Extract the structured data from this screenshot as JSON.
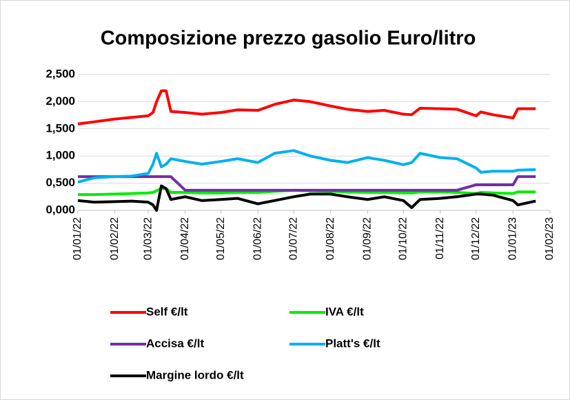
{
  "chart_data": {
    "type": "line",
    "title": "Composizione prezzo gasolio Euro/litro",
    "x": [
      "2022-01-01",
      "2022-01-15",
      "2022-02-01",
      "2022-02-15",
      "2022-03-01",
      "2022-03-05",
      "2022-03-08",
      "2022-03-12",
      "2022-03-16",
      "2022-03-20",
      "2022-04-01",
      "2022-04-15",
      "2022-05-01",
      "2022-05-15",
      "2022-06-01",
      "2022-06-15",
      "2022-07-01",
      "2022-07-15",
      "2022-08-01",
      "2022-08-15",
      "2022-09-01",
      "2022-09-15",
      "2022-10-01",
      "2022-10-08",
      "2022-10-15",
      "2022-11-01",
      "2022-11-15",
      "2022-12-01",
      "2022-12-05",
      "2022-12-15",
      "2023-01-01",
      "2023-01-05",
      "2023-01-20"
    ],
    "series": [
      {
        "name": "Self €/lt",
        "color": "#ff0000",
        "values": [
          1.59,
          1.63,
          1.68,
          1.71,
          1.74,
          1.8,
          2.0,
          2.2,
          2.2,
          1.82,
          1.8,
          1.77,
          1.8,
          1.85,
          1.84,
          1.95,
          2.03,
          2.0,
          1.92,
          1.86,
          1.82,
          1.84,
          1.77,
          1.76,
          1.88,
          1.87,
          1.86,
          1.74,
          1.81,
          1.76,
          1.7,
          1.87,
          1.87
        ]
      },
      {
        "name": "IVA €/lt",
        "color": "#00ee00",
        "values": [
          0.29,
          0.29,
          0.3,
          0.31,
          0.32,
          0.33,
          0.36,
          0.4,
          0.4,
          0.33,
          0.33,
          0.32,
          0.32,
          0.33,
          0.33,
          0.35,
          0.37,
          0.36,
          0.35,
          0.34,
          0.33,
          0.33,
          0.32,
          0.32,
          0.34,
          0.34,
          0.33,
          0.31,
          0.33,
          0.32,
          0.31,
          0.34,
          0.34
        ]
      },
      {
        "name": "Accisa €/lt",
        "color": "#7030a0",
        "values": [
          0.62,
          0.62,
          0.62,
          0.62,
          0.62,
          0.62,
          0.62,
          0.62,
          0.62,
          0.62,
          0.37,
          0.37,
          0.37,
          0.37,
          0.37,
          0.37,
          0.37,
          0.37,
          0.37,
          0.37,
          0.37,
          0.37,
          0.37,
          0.37,
          0.37,
          0.37,
          0.37,
          0.47,
          0.47,
          0.47,
          0.47,
          0.62,
          0.62
        ]
      },
      {
        "name": "Platt's €/lt",
        "color": "#00b0f0",
        "values": [
          0.52,
          0.6,
          0.62,
          0.63,
          0.68,
          0.85,
          1.05,
          0.8,
          0.85,
          0.95,
          0.9,
          0.85,
          0.9,
          0.95,
          0.88,
          1.05,
          1.1,
          1.0,
          0.92,
          0.88,
          0.97,
          0.92,
          0.84,
          0.88,
          1.05,
          0.97,
          0.95,
          0.78,
          0.7,
          0.72,
          0.72,
          0.74,
          0.75
        ]
      },
      {
        "name": "Margine lordo €/lt",
        "color": "#000000",
        "values": [
          0.18,
          0.15,
          0.16,
          0.17,
          0.15,
          0.1,
          0.0,
          0.45,
          0.4,
          0.2,
          0.25,
          0.18,
          0.2,
          0.22,
          0.12,
          0.18,
          0.25,
          0.3,
          0.3,
          0.25,
          0.2,
          0.25,
          0.18,
          0.05,
          0.2,
          0.22,
          0.25,
          0.3,
          0.3,
          0.28,
          0.18,
          0.1,
          0.17
        ]
      }
    ],
    "xlim": [
      "2022-01-01",
      "2023-02-01"
    ],
    "xticks": [
      {
        "value": "2022-01-01",
        "label": "01/01/22"
      },
      {
        "value": "2022-02-01",
        "label": "01/02/22"
      },
      {
        "value": "2022-03-01",
        "label": "01/03/22"
      },
      {
        "value": "2022-04-01",
        "label": "01/04/22"
      },
      {
        "value": "2022-05-01",
        "label": "01/05/22"
      },
      {
        "value": "2022-06-01",
        "label": "01/06/22"
      },
      {
        "value": "2022-07-01",
        "label": "01/07/22"
      },
      {
        "value": "2022-08-01",
        "label": "01/08/22"
      },
      {
        "value": "2022-09-01",
        "label": "01/09/22"
      },
      {
        "value": "2022-10-01",
        "label": "01/10/22"
      },
      {
        "value": "2022-11-01",
        "label": "01/11/22"
      },
      {
        "value": "2022-12-01",
        "label": "01/12/22"
      },
      {
        "value": "2023-01-01",
        "label": "01/01/23"
      },
      {
        "value": "2023-02-01",
        "label": "01/02/23"
      }
    ],
    "ylim": [
      0,
      2.5
    ],
    "yticks": [
      {
        "value": 0,
        "label": "0,000"
      },
      {
        "value": 0.5,
        "label": "0,500"
      },
      {
        "value": 1,
        "label": "1,000"
      },
      {
        "value": 1.5,
        "label": "1,500"
      },
      {
        "value": 2,
        "label": "2,000"
      },
      {
        "value": 2.5,
        "label": "2,500"
      }
    ],
    "grid": true,
    "legend": "bottom"
  }
}
